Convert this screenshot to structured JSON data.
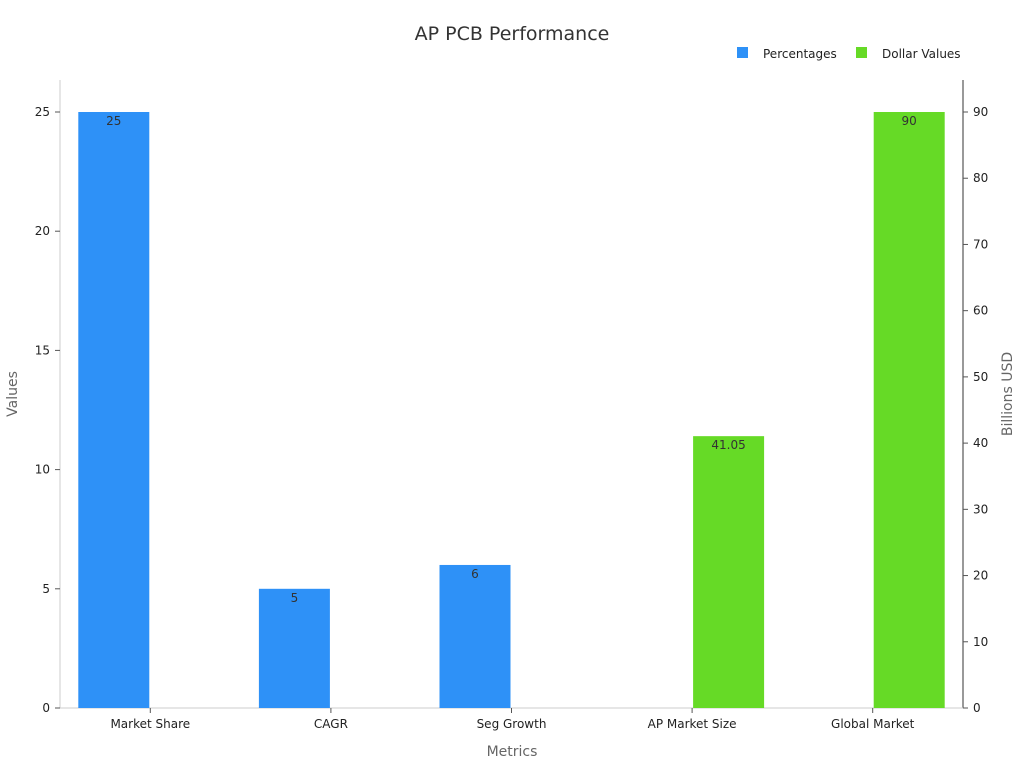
{
  "chart_data": {
    "type": "bar",
    "title": "AP PCB Performance",
    "xlabel": "Metrics",
    "ylabel": "Values",
    "y2label": "Billions USD",
    "categories": [
      "Market Share",
      "CAGR",
      "Seg Growth",
      "AP Market Size",
      "Global Market"
    ],
    "ylim": [
      0,
      26
    ],
    "y_ticks": [
      0,
      5,
      10,
      15,
      20,
      25
    ],
    "y2lim": [
      0,
      95
    ],
    "y2_ticks": [
      0,
      10,
      20,
      30,
      40,
      50,
      60,
      70,
      80,
      90
    ],
    "legend_position": "top-right",
    "series": [
      {
        "name": "Percentages",
        "color": "#2e91f7",
        "axis": "left",
        "values": [
          25,
          5,
          6,
          null,
          null
        ],
        "labels": [
          "25",
          "5",
          "6",
          "",
          ""
        ]
      },
      {
        "name": "Dollar Values",
        "color": "#66da26",
        "axis": "right",
        "values": [
          null,
          null,
          null,
          41.05,
          90
        ],
        "labels": [
          "",
          "",
          "",
          "41.05",
          "90"
        ]
      }
    ]
  }
}
